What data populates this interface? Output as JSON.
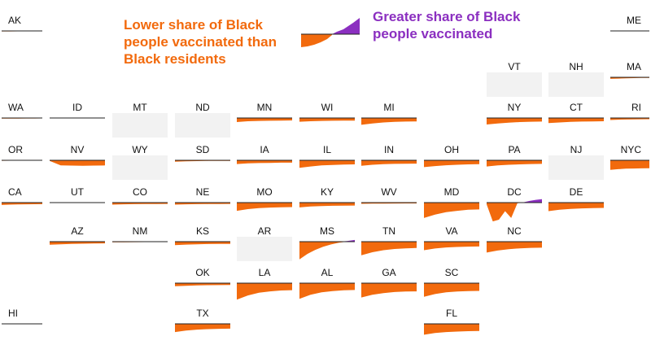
{
  "legend": {
    "lower_text": "Lower share of Black people vaccinated than Black residents",
    "greater_text": "Greater share of Black people vaccinated",
    "lower_color": "#f26a0d",
    "greater_color": "#8b2fc0"
  },
  "chart_data": {
    "type": "area",
    "baseline": 0,
    "nodata_color": "#f2f2f2",
    "states": [
      {
        "abbr": "AK",
        "row": 0,
        "col": 0,
        "status": "data",
        "values": [
          -0.15,
          -0.14,
          -0.12,
          -0.12,
          -0.11,
          -0.1
        ]
      },
      {
        "abbr": "ME",
        "row": 0,
        "col": 10,
        "status": "data",
        "values": [
          -0.05,
          -0.05,
          -0.04,
          -0.04,
          -0.03,
          -0.03
        ]
      },
      {
        "abbr": "VT",
        "row": 1,
        "col": 8,
        "status": "nodata",
        "values": []
      },
      {
        "abbr": "NH",
        "row": 1,
        "col": 9,
        "status": "nodata",
        "values": []
      },
      {
        "abbr": "MA",
        "row": 1,
        "col": 10,
        "status": "data",
        "values": [
          -0.45,
          -0.38,
          -0.3,
          -0.25,
          -0.2,
          -0.18
        ]
      },
      {
        "abbr": "WA",
        "row": 2,
        "col": 0,
        "status": "data",
        "values": [
          -0.2,
          -0.18,
          -0.16,
          -0.15,
          -0.14,
          -0.13
        ]
      },
      {
        "abbr": "ID",
        "row": 2,
        "col": 1,
        "status": "data",
        "values": [
          -0.05,
          -0.04,
          -0.04,
          -0.03,
          -0.03,
          -0.02
        ]
      },
      {
        "abbr": "MT",
        "row": 2,
        "col": 2,
        "status": "nodata",
        "values": []
      },
      {
        "abbr": "ND",
        "row": 2,
        "col": 3,
        "status": "nodata",
        "values": []
      },
      {
        "abbr": "MN",
        "row": 2,
        "col": 4,
        "status": "data",
        "values": [
          -1.2,
          -0.95,
          -0.85,
          -0.8,
          -0.75,
          -0.72
        ]
      },
      {
        "abbr": "WI",
        "row": 2,
        "col": 5,
        "status": "data",
        "values": [
          -1.1,
          -0.95,
          -0.85,
          -0.8,
          -0.78,
          -0.75
        ]
      },
      {
        "abbr": "MI",
        "row": 2,
        "col": 6,
        "status": "data",
        "values": [
          -2.0,
          -1.6,
          -1.3,
          -1.15,
          -1.05,
          -1.0
        ]
      },
      {
        "abbr": "NY",
        "row": 2,
        "col": 8,
        "status": "data",
        "values": [
          -1.9,
          -1.6,
          -1.35,
          -1.2,
          -1.1,
          -1.05
        ]
      },
      {
        "abbr": "CT",
        "row": 2,
        "col": 9,
        "status": "data",
        "values": [
          -1.5,
          -1.3,
          -1.15,
          -1.05,
          -1.0,
          -0.95
        ]
      },
      {
        "abbr": "RI",
        "row": 2,
        "col": 10,
        "status": "data",
        "values": [
          -0.6,
          -0.5,
          -0.45,
          -0.4,
          -0.38,
          -0.36
        ]
      },
      {
        "abbr": "OR",
        "row": 3,
        "col": 0,
        "status": "data",
        "values": [
          -0.15,
          -0.13,
          -0.12,
          -0.11,
          -0.1,
          -0.1
        ]
      },
      {
        "abbr": "NV",
        "row": 3,
        "col": 1,
        "status": "data",
        "values": [
          -0.2,
          -1.5,
          -1.55,
          -1.6,
          -1.55,
          -1.5
        ]
      },
      {
        "abbr": "WY",
        "row": 3,
        "col": 2,
        "status": "nodata",
        "values": []
      },
      {
        "abbr": "SD",
        "row": 3,
        "col": 3,
        "status": "data",
        "values": [
          -0.4,
          -0.3,
          -0.25,
          -0.2,
          -0.18,
          -0.16
        ]
      },
      {
        "abbr": "IA",
        "row": 3,
        "col": 4,
        "status": "data",
        "values": [
          -1.1,
          -0.9,
          -0.8,
          -0.75,
          -0.7,
          -0.68
        ]
      },
      {
        "abbr": "IL",
        "row": 3,
        "col": 5,
        "status": "data",
        "values": [
          -2.2,
          -1.8,
          -1.5,
          -1.35,
          -1.25,
          -1.2
        ]
      },
      {
        "abbr": "IN",
        "row": 3,
        "col": 6,
        "status": "data",
        "values": [
          -1.6,
          -1.3,
          -1.15,
          -1.05,
          -1.0,
          -0.98
        ]
      },
      {
        "abbr": "OH",
        "row": 3,
        "col": 7,
        "status": "data",
        "values": [
          -2.0,
          -1.7,
          -1.45,
          -1.3,
          -1.2,
          -1.15
        ]
      },
      {
        "abbr": "PA",
        "row": 3,
        "col": 8,
        "status": "data",
        "values": [
          -1.8,
          -1.5,
          -1.3,
          -1.2,
          -1.1,
          -1.05
        ]
      },
      {
        "abbr": "NJ",
        "row": 3,
        "col": 9,
        "status": "nodata",
        "values": []
      },
      {
        "abbr": "NYC",
        "row": 3,
        "col": 10,
        "status": "data",
        "values": [
          -2.8,
          -2.6,
          -2.45,
          -2.4,
          -2.35,
          -2.3
        ]
      },
      {
        "abbr": "CA",
        "row": 4,
        "col": 0,
        "status": "data",
        "values": [
          -0.7,
          -0.6,
          -0.55,
          -0.5,
          -0.48,
          -0.45
        ]
      },
      {
        "abbr": "UT",
        "row": 4,
        "col": 1,
        "status": "data",
        "values": [
          -0.1,
          -0.09,
          -0.08,
          -0.07,
          -0.07,
          -0.06
        ]
      },
      {
        "abbr": "CO",
        "row": 4,
        "col": 2,
        "status": "data",
        "values": [
          -0.6,
          -0.5,
          -0.45,
          -0.42,
          -0.4,
          -0.38
        ]
      },
      {
        "abbr": "NE",
        "row": 4,
        "col": 3,
        "status": "data",
        "values": [
          -0.6,
          -0.5,
          -0.45,
          -0.42,
          -0.4,
          -0.38
        ]
      },
      {
        "abbr": "MO",
        "row": 4,
        "col": 4,
        "status": "data",
        "values": [
          -2.4,
          -1.9,
          -1.6,
          -1.45,
          -1.35,
          -1.3
        ]
      },
      {
        "abbr": "KY",
        "row": 4,
        "col": 5,
        "status": "data",
        "values": [
          -1.4,
          -1.15,
          -1.0,
          -0.92,
          -0.88,
          -0.85
        ]
      },
      {
        "abbr": "WV",
        "row": 4,
        "col": 6,
        "status": "data",
        "values": [
          -0.35,
          -0.3,
          -0.28,
          -0.26,
          -0.25,
          -0.24
        ]
      },
      {
        "abbr": "MD",
        "row": 4,
        "col": 7,
        "status": "data",
        "values": [
          -4.5,
          -3.5,
          -2.8,
          -2.4,
          -2.1,
          -2.0
        ]
      },
      {
        "abbr": "DC",
        "row": 4,
        "col": 8,
        "status": "data",
        "values": [
          -0.5,
          -5.5,
          -5.0,
          -2.5,
          -4.5,
          -0.2,
          0.1,
          0.5,
          0.8,
          1.0
        ]
      },
      {
        "abbr": "DE",
        "row": 4,
        "col": 9,
        "status": "data",
        "values": [
          -2.5,
          -2.1,
          -1.85,
          -1.7,
          -1.6,
          -1.55
        ]
      },
      {
        "abbr": "AZ",
        "row": 5,
        "col": 1,
        "status": "data",
        "values": [
          -0.9,
          -0.75,
          -0.65,
          -0.6,
          -0.55,
          -0.5
        ]
      },
      {
        "abbr": "NM",
        "row": 5,
        "col": 2,
        "status": "data",
        "values": [
          -0.2,
          -0.17,
          -0.15,
          -0.13,
          -0.12,
          -0.11
        ]
      },
      {
        "abbr": "KS",
        "row": 5,
        "col": 3,
        "status": "data",
        "values": [
          -1.0,
          -0.85,
          -0.75,
          -0.7,
          -0.66,
          -0.64
        ]
      },
      {
        "abbr": "AR",
        "row": 5,
        "col": 4,
        "status": "nodata",
        "values": []
      },
      {
        "abbr": "MS",
        "row": 5,
        "col": 5,
        "status": "data",
        "values": [
          -5.2,
          -3.6,
          -2.4,
          -1.5,
          -0.8,
          -0.3,
          0.2,
          0.5
        ]
      },
      {
        "abbr": "TN",
        "row": 5,
        "col": 6,
        "status": "data",
        "values": [
          -4.0,
          -3.1,
          -2.5,
          -2.15,
          -1.95,
          -1.85
        ]
      },
      {
        "abbr": "VA",
        "row": 5,
        "col": 7,
        "status": "data",
        "values": [
          -2.5,
          -2.0,
          -1.7,
          -1.55,
          -1.45,
          -1.4
        ]
      },
      {
        "abbr": "NC",
        "row": 5,
        "col": 8,
        "status": "data",
        "values": [
          -3.2,
          -2.6,
          -2.2,
          -1.95,
          -1.8,
          -1.75
        ]
      },
      {
        "abbr": "OK",
        "row": 6,
        "col": 3,
        "status": "data",
        "values": [
          -0.9,
          -0.75,
          -0.65,
          -0.6,
          -0.56,
          -0.54
        ]
      },
      {
        "abbr": "LA",
        "row": 6,
        "col": 4,
        "status": "data",
        "values": [
          -4.8,
          -3.6,
          -2.8,
          -2.4,
          -2.15,
          -2.05
        ]
      },
      {
        "abbr": "AL",
        "row": 6,
        "col": 5,
        "status": "data",
        "values": [
          -4.6,
          -3.4,
          -2.7,
          -2.3,
          -2.1,
          -2.0
        ]
      },
      {
        "abbr": "GA",
        "row": 6,
        "col": 6,
        "status": "data",
        "values": [
          -4.2,
          -3.4,
          -2.9,
          -2.6,
          -2.45,
          -2.4
        ]
      },
      {
        "abbr": "SC",
        "row": 6,
        "col": 7,
        "status": "data",
        "values": [
          -4.0,
          -3.2,
          -2.7,
          -2.45,
          -2.3,
          -2.25
        ]
      },
      {
        "abbr": "HI",
        "row": 7,
        "col": 0,
        "status": "data",
        "values": [
          -0.1,
          -0.09,
          -0.08,
          -0.07,
          -0.07,
          -0.06
        ]
      },
      {
        "abbr": "TX",
        "row": 7,
        "col": 3,
        "status": "data",
        "values": [
          -2.4,
          -1.95,
          -1.7,
          -1.55,
          -1.45,
          -1.4
        ]
      },
      {
        "abbr": "FL",
        "row": 7,
        "col": 7,
        "status": "data",
        "values": [
          -3.2,
          -2.7,
          -2.4,
          -2.25,
          -2.15,
          -2.1
        ]
      }
    ]
  }
}
